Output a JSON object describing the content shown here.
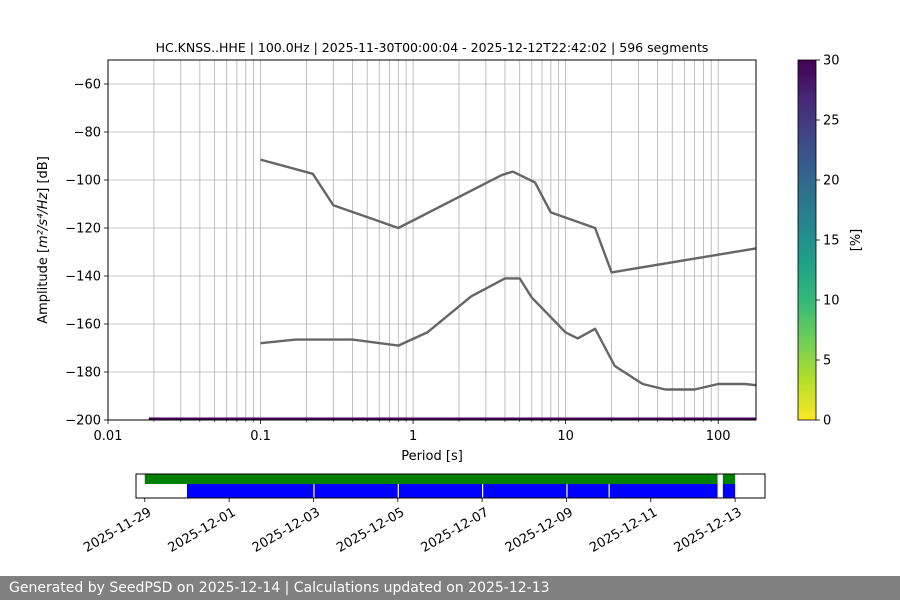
{
  "chart_data": [
    {
      "type": "line",
      "title": "HC.KNSS..HHE | 100.0Hz | 2025-11-30T00:00:04 - 2025-12-12T22:42:02 | 596 segments",
      "xlabel": "Period [s]",
      "ylabel_prefix": "Amplitude [",
      "ylabel_math": "m²/s⁴/Hz",
      "ylabel_suffix": "] [dB]",
      "xscale": "log",
      "xlim": [
        0.01,
        177
      ],
      "ylim": [
        -200,
        -50
      ],
      "xticks": [
        {
          "v": 0.01,
          "label": "0.01"
        },
        {
          "v": 0.1,
          "label": "0.1"
        },
        {
          "v": 1,
          "label": "1"
        },
        {
          "v": 10,
          "label": "10"
        },
        {
          "v": 100,
          "label": "100"
        }
      ],
      "yticks": [
        {
          "v": -60,
          "label": "−60"
        },
        {
          "v": -80,
          "label": "−80"
        },
        {
          "v": -100,
          "label": "−100"
        },
        {
          "v": -120,
          "label": "−120"
        },
        {
          "v": -140,
          "label": "−140"
        },
        {
          "v": -160,
          "label": "−160"
        },
        {
          "v": -180,
          "label": "−180"
        },
        {
          "v": -200,
          "label": "−200"
        }
      ],
      "grid": true,
      "line_color": "#666666",
      "series": [
        {
          "x": [
            0.1,
            0.22,
            0.3,
            0.8,
            3.8,
            4.5,
            6.3,
            8.0,
            15.6,
            20.0,
            177
          ],
          "y": [
            -91.5,
            -97.4,
            -110.5,
            -120,
            -98,
            -96.5,
            -101,
            -113.5,
            -120,
            -138.5,
            -128.5
          ]
        },
        {
          "x": [
            0.1,
            0.17,
            0.4,
            0.8,
            1.24,
            2.4,
            4.0,
            5.0,
            6.0,
            10.0,
            12.0,
            15.6,
            21.0,
            32.0,
            45.0,
            70.0,
            100.0,
            150.0,
            177
          ],
          "y": [
            -168,
            -166.5,
            -166.5,
            -169,
            -163.5,
            -148.5,
            -141,
            -141,
            -149,
            -163.5,
            -166,
            -162,
            -177.5,
            -185,
            -187.3,
            -187.3,
            -185,
            -185,
            -185.5
          ]
        }
      ],
      "density_strip": {
        "x_start": 0.0185,
        "x_end": 177,
        "y": -200,
        "color": "#440154"
      }
    },
    {
      "type": "colorbar",
      "label": "[%]",
      "range": [
        0,
        30
      ],
      "ticks": [
        {
          "v": 0,
          "label": "0"
        },
        {
          "v": 5,
          "label": "5"
        },
        {
          "v": 10,
          "label": "10"
        },
        {
          "v": 15,
          "label": "15"
        },
        {
          "v": 20,
          "label": "20"
        },
        {
          "v": 25,
          "label": "25"
        },
        {
          "v": 30,
          "label": "30"
        }
      ],
      "colormap": "viridis_r",
      "stops": [
        "#fde725",
        "#b5de2b",
        "#6ece58",
        "#35b779",
        "#1f9e89",
        "#26828e",
        "#31688e",
        "#3e4989",
        "#482878",
        "#440154"
      ]
    },
    {
      "type": "timeline",
      "xlim": [
        "2025-11-28T19:00",
        "2025-12-13T17:00"
      ],
      "xticks": [
        "2025-11-29",
        "2025-12-01",
        "2025-12-03",
        "2025-12-05",
        "2025-12-07",
        "2025-12-09",
        "2025-12-11",
        "2025-12-13"
      ],
      "data_color": "#008000",
      "calc_color": "#0000ff",
      "data_segments": [
        [
          "2025-11-29T00:00",
          "2025-12-12T14:00"
        ],
        [
          "2025-12-12T17:00",
          "2025-12-13T00:00"
        ]
      ],
      "calc_segments": [
        [
          "2025-11-30T00:00",
          "2025-12-12T14:00"
        ],
        [
          "2025-12-12T17:00",
          "2025-12-13T00:00"
        ]
      ],
      "calc_gaps": [
        "2025-12-03T00:00",
        "2025-12-05T00:00",
        "2025-12-07T00:00",
        "2025-12-09T00:00",
        "2025-12-10T00:00"
      ]
    }
  ],
  "footer": {
    "text": "Generated by SeedPSD on 2025-12-14 | Calculations updated on 2025-12-13"
  }
}
